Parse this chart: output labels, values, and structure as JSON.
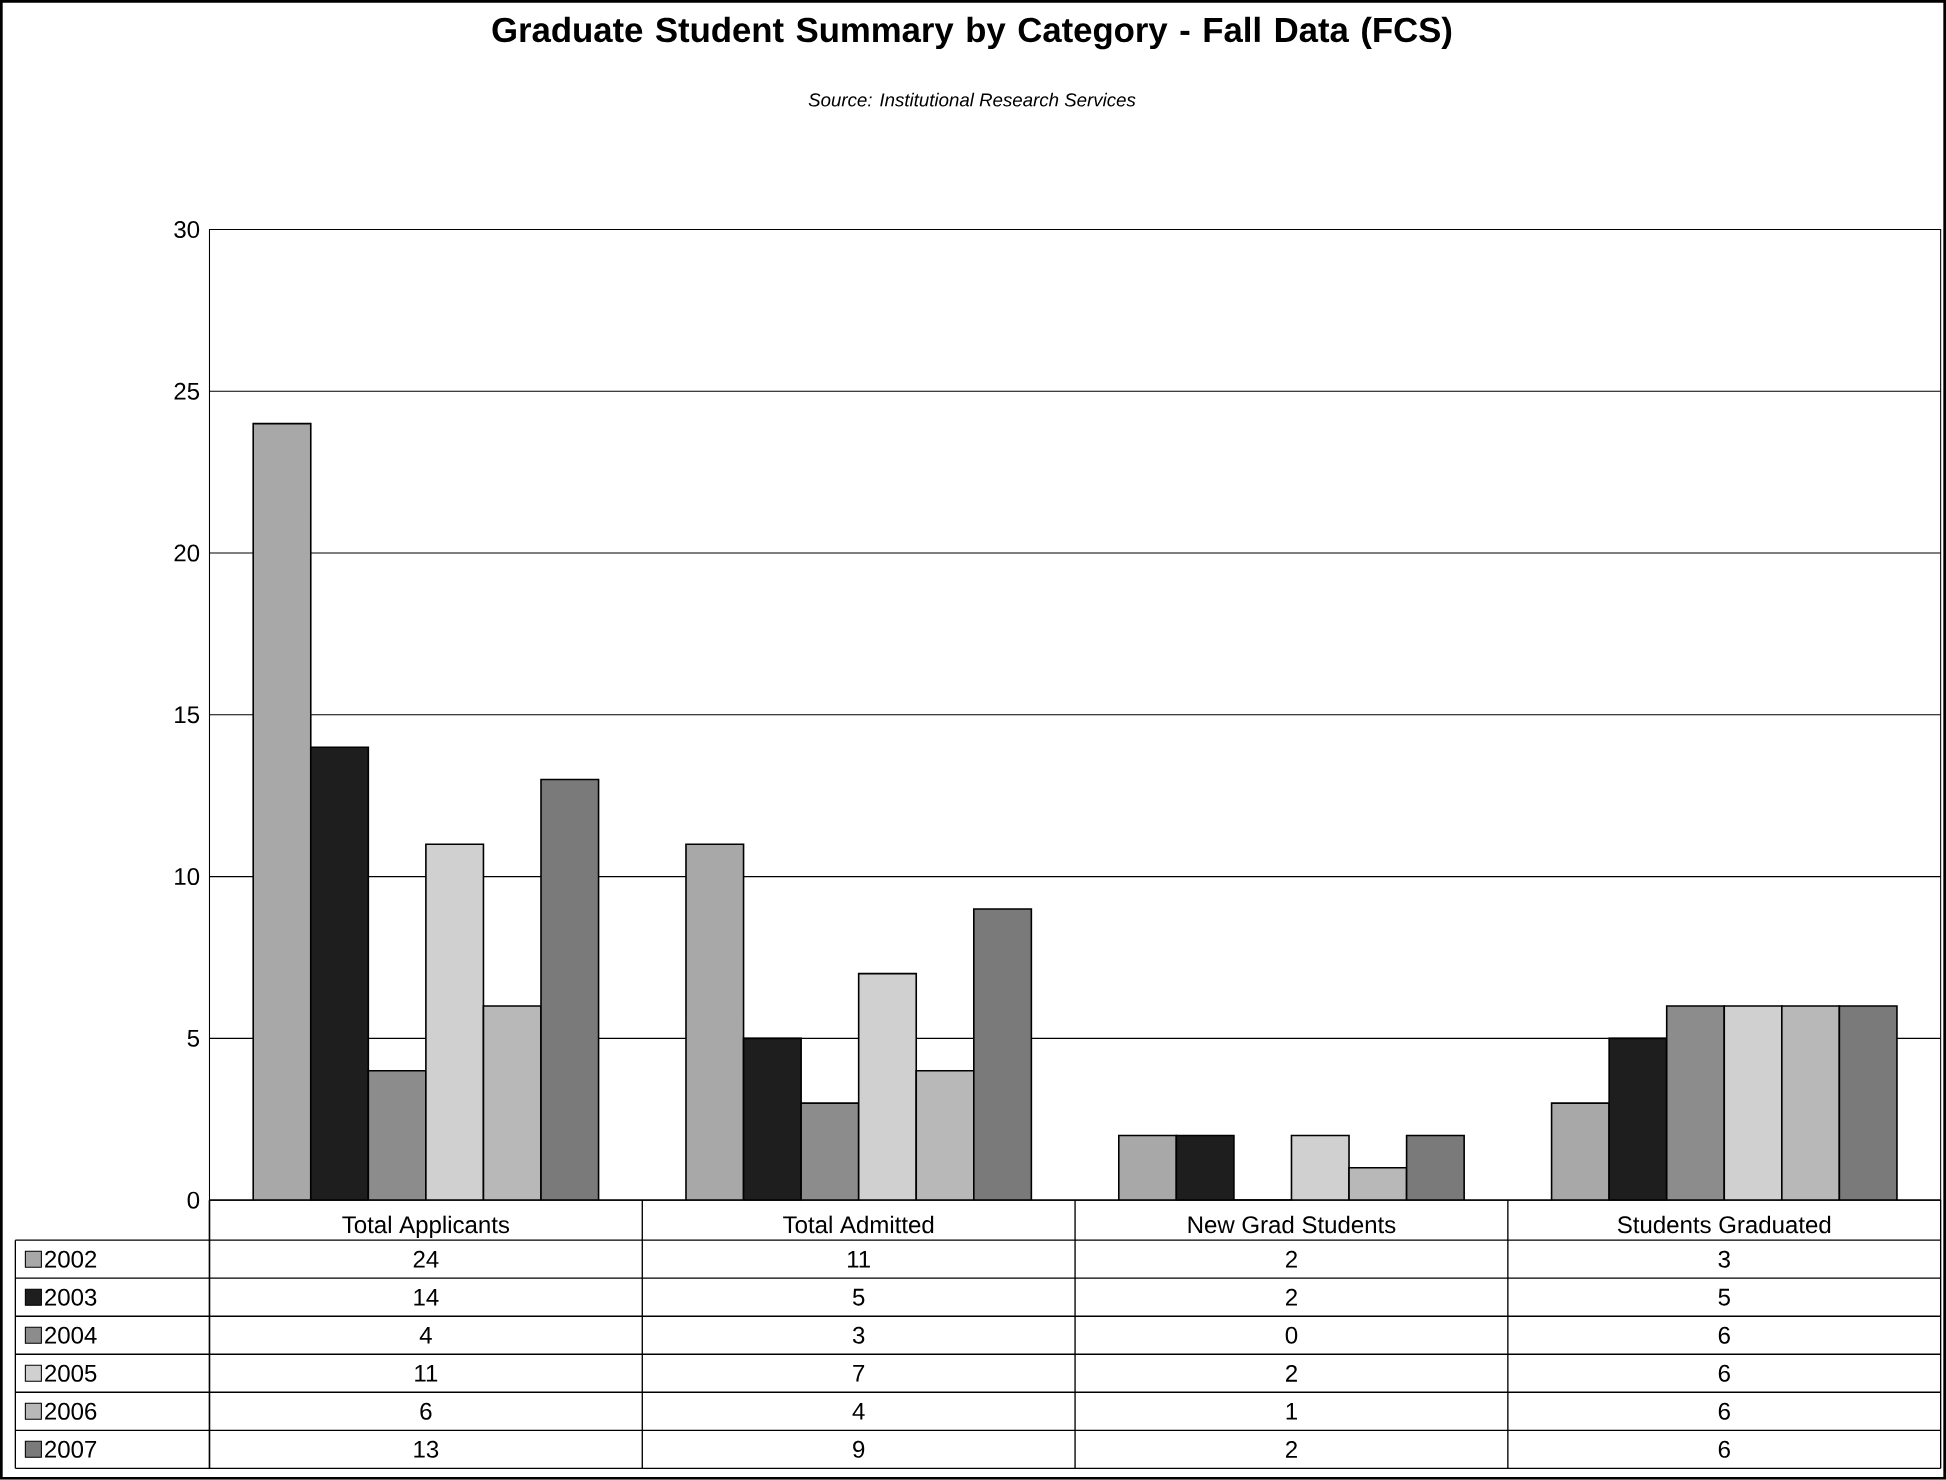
{
  "chart_data": {
    "type": "bar",
    "title": "Graduate Student Summary by Category - Fall Data (FCS)",
    "annotations": [
      "Source: Institutional Research Services"
    ],
    "categories": [
      "Total Applicants",
      "Total Admitted",
      "New Grad Students",
      "Students Graduated"
    ],
    "series": [
      {
        "name": "2002",
        "color": "#a8a8a8",
        "values": [
          24,
          11,
          2,
          3
        ]
      },
      {
        "name": "2003",
        "color": "#1e1e1e",
        "values": [
          14,
          5,
          2,
          5
        ]
      },
      {
        "name": "2004",
        "color": "#8c8c8c",
        "values": [
          4,
          3,
          0,
          6
        ]
      },
      {
        "name": "2005",
        "color": "#d0d0d0",
        "values": [
          11,
          7,
          2,
          6
        ]
      },
      {
        "name": "2006",
        "color": "#b8b8b8",
        "values": [
          6,
          4,
          1,
          6
        ]
      },
      {
        "name": "2007",
        "color": "#7a7a7a",
        "values": [
          13,
          9,
          2,
          6
        ]
      }
    ],
    "ylim": [
      0,
      30
    ],
    "yticks": [
      0,
      5,
      10,
      15,
      20,
      25,
      30
    ],
    "grid": "y",
    "legend": "bottom left",
    "data_labels": true
  }
}
